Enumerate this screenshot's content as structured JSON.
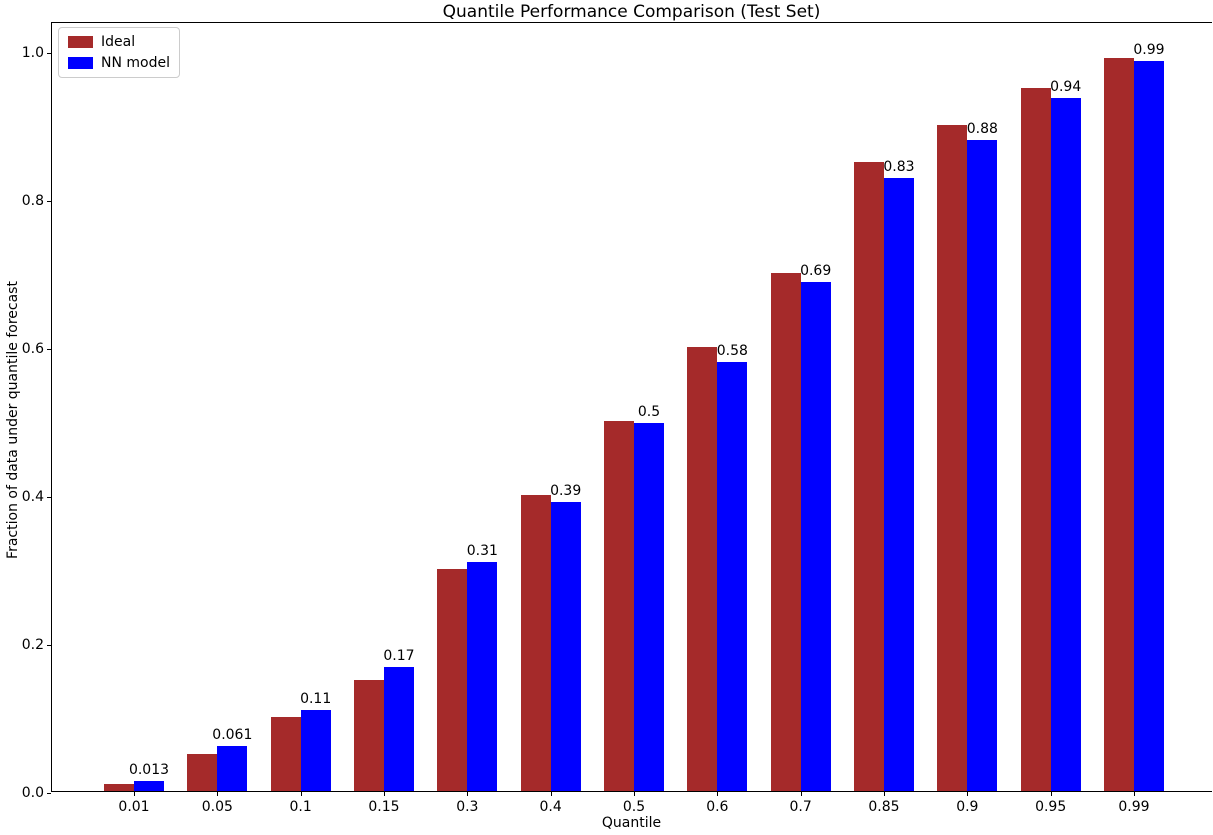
{
  "title": "Quantile Performance Comparison (Test Set)",
  "colors": {
    "ideal": "#a52a2a",
    "nn_model": "#0000ff",
    "axis": "#000000",
    "legend_border": "#cccccc"
  },
  "chart_data": {
    "type": "bar",
    "title": "Quantile Performance Comparison (Test Set)",
    "xlabel": "Quantile",
    "ylabel": "Fraction of data under quantile forecast",
    "categories": [
      "0.01",
      "0.05",
      "0.1",
      "0.15",
      "0.3",
      "0.4",
      "0.5",
      "0.6",
      "0.7",
      "0.85",
      "0.9",
      "0.95",
      "0.99"
    ],
    "series": [
      {
        "name": "Ideal",
        "color": "#a52a2a",
        "values": [
          0.01,
          0.05,
          0.1,
          0.15,
          0.3,
          0.4,
          0.5,
          0.6,
          0.7,
          0.85,
          0.9,
          0.95,
          0.99
        ]
      },
      {
        "name": "NN model",
        "color": "#0000ff",
        "values": [
          0.013,
          0.061,
          0.11,
          0.168,
          0.31,
          0.39,
          0.497,
          0.58,
          0.688,
          0.828,
          0.88,
          0.937,
          0.987
        ],
        "bar_labels": [
          "0.013",
          "0.061",
          "0.11",
          "0.17",
          "0.31",
          "0.39",
          "0.5",
          "0.58",
          "0.69",
          "0.83",
          "0.88",
          "0.94",
          "0.99"
        ]
      }
    ],
    "ylim": [
      0,
      1.04
    ],
    "yticks": [
      "0.0",
      "0.2",
      "0.4",
      "0.6",
      "0.8",
      "1.0"
    ],
    "ytick_values": [
      0.0,
      0.2,
      0.4,
      0.6,
      0.8,
      1.0
    ],
    "grid": false,
    "legend_position": "upper left",
    "legend_entries": [
      "Ideal",
      "NN model"
    ]
  }
}
